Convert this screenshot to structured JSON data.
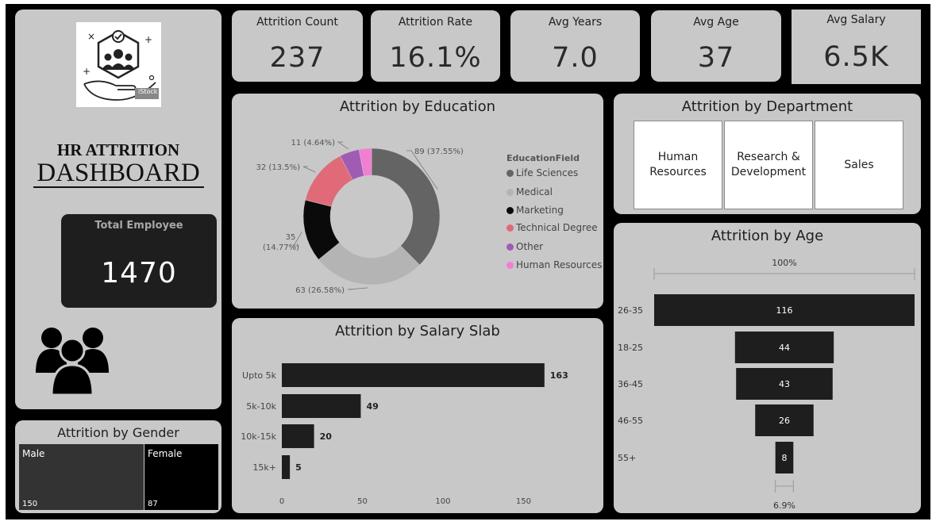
{
  "brand": {
    "title_line1": "HR ATTRITION",
    "title_line2": "DASHBOARD",
    "watermark": "iStock"
  },
  "kpis": [
    {
      "label": "Attrition Count",
      "value": "237"
    },
    {
      "label": "Attrition Rate",
      "value": "16.1%"
    },
    {
      "label": "Avg Years",
      "value": "7.0"
    },
    {
      "label": "Avg Age",
      "value": "37"
    },
    {
      "label": "Avg Salary",
      "value": "6.5K"
    }
  ],
  "total_employee": {
    "label": "Total Employee",
    "value": "1470"
  },
  "department": {
    "title": "Attrition by Department",
    "items": [
      "Human Resources",
      "Research & Development",
      "Sales"
    ]
  },
  "colors": {
    "background": "#000000",
    "card": "#c8c8c8",
    "bar": "#1e1e1e",
    "male": "#333333",
    "female": "#000000"
  },
  "chart_data": [
    {
      "type": "donut",
      "title": "Attrition by Education",
      "legend_title": "EducationField",
      "legend_position": "right",
      "series": [
        {
          "name": "Life Sciences",
          "value": 89,
          "label": "89 (37.55%)",
          "color": "#646464"
        },
        {
          "name": "Medical",
          "value": 63,
          "label": "63 (26.58%)",
          "color": "#b4b4b4"
        },
        {
          "name": "Marketing",
          "value": 35,
          "label": "35 (14.77%)",
          "color": "#0a0a0a"
        },
        {
          "name": "Technical Degree",
          "value": 32,
          "label": "32 (13.5%)",
          "color": "#e06a77"
        },
        {
          "name": "Other",
          "value": 11,
          "label": "11 (4.64%)",
          "color": "#a05cb4"
        },
        {
          "name": "Human Resources",
          "value": 7,
          "label": "",
          "color": "#f07fd2"
        }
      ]
    },
    {
      "type": "bar",
      "orientation": "horizontal",
      "title": "Attrition by Salary Slab",
      "categories": [
        "Upto 5k",
        "5k-10k",
        "10k-15k",
        "15k+"
      ],
      "values": [
        163,
        49,
        20,
        5
      ],
      "xlim": [
        0,
        170
      ],
      "xticks": [
        0,
        50,
        100,
        150
      ]
    },
    {
      "type": "funnel",
      "title": "Attrition by Age",
      "categories": [
        "26-35",
        "18-25",
        "36-45",
        "46-55",
        "55+"
      ],
      "values": [
        116,
        44,
        43,
        26,
        8
      ],
      "top_label": "100%",
      "bottom_label": "6.9%"
    },
    {
      "type": "treemap",
      "title": "Attrition by Gender",
      "categories": [
        "Male",
        "Female"
      ],
      "values": [
        150,
        87
      ]
    }
  ]
}
